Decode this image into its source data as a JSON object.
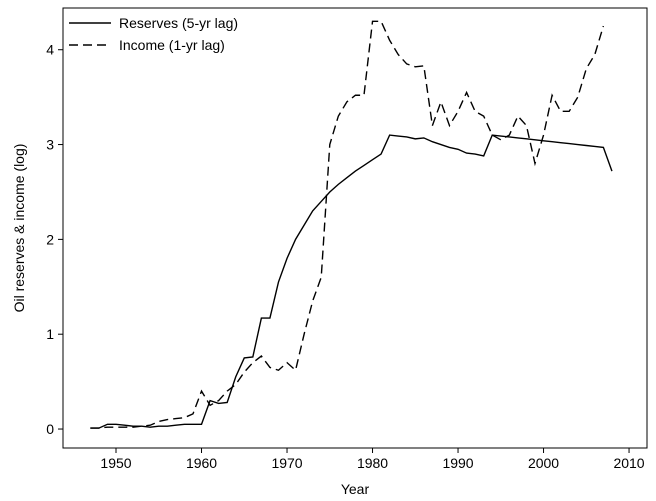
{
  "chart_data": {
    "type": "line",
    "x_label": "Year",
    "y_label": "Oil reserves & income (log)",
    "x": [
      1947,
      1948,
      1949,
      1950,
      1951,
      1952,
      1953,
      1954,
      1955,
      1956,
      1957,
      1958,
      1959,
      1960,
      1961,
      1962,
      1963,
      1964,
      1965,
      1966,
      1967,
      1968,
      1969,
      1970,
      1971,
      1972,
      1973,
      1974,
      1975,
      1976,
      1977,
      1978,
      1979,
      1980,
      1981,
      1982,
      1983,
      1984,
      1985,
      1986,
      1987,
      1988,
      1989,
      1990,
      1991,
      1992,
      1993,
      1994,
      1995,
      1996,
      1997,
      1998,
      1999,
      2000,
      2001,
      2002,
      2003,
      2004,
      2005,
      2006,
      2007,
      2008
    ],
    "series": [
      {
        "name": "Reserves (5-yr lag)",
        "color": "#000000",
        "dash": "solid",
        "values": [
          0.01,
          0.01,
          0.05,
          0.05,
          0.04,
          0.03,
          0.03,
          0.02,
          0.03,
          0.03,
          0.04,
          0.05,
          0.05,
          0.05,
          0.3,
          0.27,
          0.28,
          0.55,
          0.75,
          0.76,
          1.17,
          1.17,
          1.55,
          1.8,
          2.0,
          2.15,
          2.3,
          2.4,
          2.5,
          2.58,
          2.65,
          2.72,
          2.78,
          2.84,
          2.9,
          3.1,
          3.09,
          3.08,
          3.06,
          3.07,
          3.03,
          3.0,
          2.97,
          2.95,
          2.91,
          2.9,
          2.88,
          3.1,
          3.09,
          3.08,
          3.07,
          3.06,
          3.05,
          3.04,
          3.03,
          3.02,
          3.01,
          3.0,
          2.99,
          2.98,
          2.97,
          2.72
        ]
      },
      {
        "name": "Income (1-yr lag)",
        "color": "#000000",
        "dash": "dashed",
        "values": [
          0.01,
          0.01,
          0.02,
          0.02,
          0.02,
          0.02,
          0.03,
          0.04,
          0.08,
          0.1,
          0.11,
          0.12,
          0.16,
          0.4,
          0.25,
          0.3,
          0.4,
          0.47,
          0.6,
          0.7,
          0.77,
          0.65,
          0.62,
          0.7,
          0.62,
          1.0,
          1.35,
          1.6,
          3.0,
          3.3,
          3.45,
          3.52,
          3.52,
          4.3,
          4.3,
          4.1,
          3.95,
          3.85,
          3.82,
          3.83,
          3.2,
          3.45,
          3.2,
          3.35,
          3.55,
          3.35,
          3.3,
          3.1,
          3.05,
          3.1,
          3.3,
          3.2,
          2.8,
          3.1,
          3.52,
          3.35,
          3.35,
          3.5,
          3.8,
          3.95,
          4.25,
          null
        ]
      }
    ],
    "xlim": [
      1943.8,
      2012.1
    ],
    "ylim": [
      -0.2,
      4.44
    ],
    "xticks": [
      1950,
      1960,
      1970,
      1980,
      1990,
      2000,
      2010
    ],
    "yticks": [
      0,
      1,
      2,
      3,
      4
    ],
    "grid": false,
    "legend": "top-left"
  }
}
